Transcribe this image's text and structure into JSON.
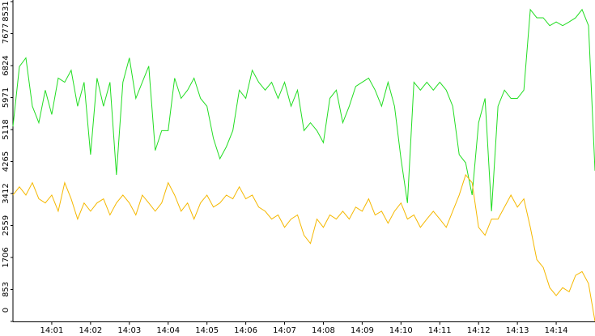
{
  "chart_data": {
    "type": "line",
    "x": [
      0,
      10,
      20,
      30,
      40,
      50,
      60,
      70,
      80,
      90,
      100,
      110,
      120,
      130,
      140,
      150,
      160,
      170,
      180,
      190,
      200,
      210,
      220,
      230,
      240,
      250,
      260,
      270,
      280,
      290,
      300,
      310,
      320,
      330,
      340,
      350,
      360,
      370,
      380,
      390,
      400,
      410,
      420,
      430,
      440,
      450,
      460,
      470,
      480,
      490,
      500,
      510,
      520,
      530,
      540,
      550,
      560,
      570,
      580,
      590,
      600,
      610,
      620,
      630,
      640,
      650,
      660,
      670,
      680,
      690,
      700,
      710,
      720,
      730,
      740,
      750,
      760,
      770,
      780,
      790,
      800,
      810,
      820,
      830,
      840,
      850,
      860,
      870,
      880,
      890,
      900
    ],
    "xlim": [
      0,
      900
    ],
    "xticks": [
      {
        "value": 60,
        "label": "14:01"
      },
      {
        "value": 120,
        "label": "14:02"
      },
      {
        "value": 180,
        "label": "14:03"
      },
      {
        "value": 240,
        "label": "14:04"
      },
      {
        "value": 300,
        "label": "14:05"
      },
      {
        "value": 360,
        "label": "14:06"
      },
      {
        "value": 420,
        "label": "14:07"
      },
      {
        "value": 480,
        "label": "14:08"
      },
      {
        "value": 540,
        "label": "14:09"
      },
      {
        "value": 600,
        "label": "14:10"
      },
      {
        "value": 660,
        "label": "14:11"
      },
      {
        "value": 720,
        "label": "14:12"
      },
      {
        "value": 780,
        "label": "14:13"
      },
      {
        "value": 840,
        "label": "14:14"
      }
    ],
    "ylim": [
      0,
      8531
    ],
    "yticks": [
      0,
      853,
      1706,
      2559,
      3412,
      4265,
      5118,
      5971,
      6824,
      7677,
      8531
    ],
    "series": [
      {
        "color": "#22dd22",
        "values": [
          5200,
          6800,
          7030,
          5740,
          5300,
          6170,
          5520,
          6490,
          6380,
          6700,
          5740,
          6380,
          4450,
          6490,
          5740,
          6380,
          3910,
          6380,
          7030,
          5950,
          6380,
          6810,
          4560,
          5090,
          5090,
          6490,
          5950,
          6170,
          6490,
          5950,
          5740,
          4880,
          4340,
          4660,
          5090,
          6170,
          5950,
          6700,
          6380,
          6170,
          6380,
          5950,
          6380,
          5740,
          6170,
          5090,
          5300,
          5090,
          4770,
          5950,
          6170,
          5300,
          5740,
          6270,
          6380,
          6490,
          6170,
          5740,
          6380,
          5740,
          4340,
          3160,
          6380,
          6170,
          6380,
          6170,
          6380,
          6170,
          5740,
          4450,
          4230,
          3370,
          5300,
          5950,
          2940,
          5740,
          6170,
          5950,
          5950,
          6170,
          8320,
          8100,
          8100,
          7890,
          7990,
          7890,
          7990,
          8100,
          8320,
          7890,
          4020
        ]
      },
      {
        "color": "#f5b800",
        "values": [
          3370,
          3590,
          3370,
          3700,
          3270,
          3160,
          3370,
          2940,
          3700,
          3270,
          2730,
          3160,
          2940,
          3160,
          3270,
          2840,
          3160,
          3370,
          3160,
          2840,
          3370,
          3160,
          2940,
          3160,
          3700,
          3370,
          2940,
          3160,
          2730,
          3160,
          3370,
          3050,
          3160,
          3370,
          3270,
          3590,
          3270,
          3370,
          3050,
          2940,
          2730,
          2840,
          2510,
          2730,
          2840,
          2300,
          2080,
          2730,
          2510,
          2840,
          2730,
          2940,
          2730,
          3050,
          2940,
          3270,
          2840,
          2940,
          2620,
          2940,
          3160,
          2730,
          2840,
          2510,
          2730,
          2940,
          2730,
          2510,
          2940,
          3370,
          3910,
          3700,
          2510,
          2300,
          2730,
          2730,
          3050,
          3370,
          3050,
          3270,
          2510,
          1650,
          1440,
          900,
          690,
          900,
          790,
          1230,
          1330,
          1010,
          0
        ]
      }
    ]
  }
}
